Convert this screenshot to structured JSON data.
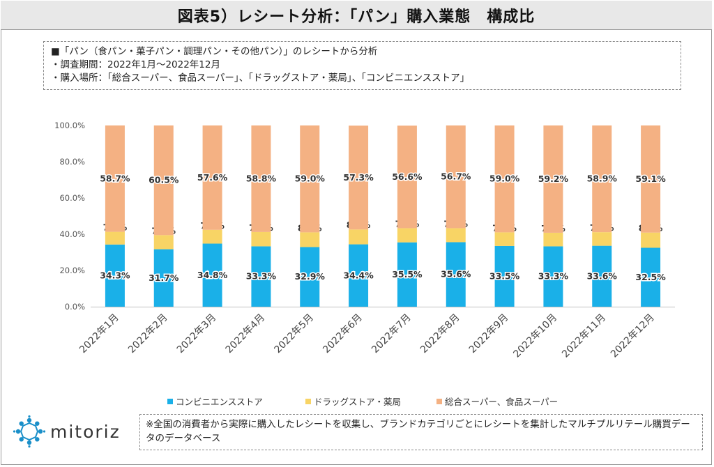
{
  "header": {
    "title": "図表5）レシート分析：「パン」購入業態　構成比"
  },
  "notes": {
    "line1": "■「パン（食パン・菓子パン・調理パン・その他パン）」のレシートから分析",
    "line2": "・調査期間：2022年1月～2022年12月",
    "line3": "・購入場所：「総合スーパー、食品スーパー」、「ドラッグストア・薬局」、「コンビニエンスストア」"
  },
  "footer": {
    "logo_text": "mitoriz",
    "footnote": "※全国の消費者から実際に購入したレシートを収集し、ブランドカテゴリごとにレシートを集計したマルチプルリテール購買データのデータベース"
  },
  "chart_data": {
    "type": "bar",
    "stacked": true,
    "categories": [
      "2022年1月",
      "2022年2月",
      "2022年3月",
      "2022年4月",
      "2022年5月",
      "2022年6月",
      "2022年7月",
      "2022年8月",
      "2022年9月",
      "2022年10月",
      "2022年11月",
      "2022年12月"
    ],
    "series": [
      {
        "name": "コンビニエンスストア",
        "color": "#1ab0e8",
        "values": [
          34.3,
          31.7,
          34.8,
          33.3,
          32.9,
          34.4,
          35.5,
          35.6,
          33.5,
          33.3,
          33.6,
          32.5
        ]
      },
      {
        "name": "ドラッグストア・薬局",
        "color": "#f8d465",
        "values": [
          7.0,
          7.8,
          7.6,
          7.9,
          8.1,
          8.2,
          7.8,
          7.7,
          7.5,
          7.5,
          7.5,
          8.4
        ]
      },
      {
        "name": "総合スーパー、食品スーパー",
        "color": "#f4b183",
        "values": [
          58.7,
          60.5,
          57.6,
          58.8,
          59.0,
          57.3,
          56.6,
          56.7,
          59.0,
          59.2,
          58.9,
          59.1
        ]
      }
    ],
    "yticks": [
      "0.0%",
      "20.0%",
      "40.0%",
      "60.0%",
      "80.0%",
      "100.0%"
    ],
    "ylim": [
      0,
      100
    ],
    "value_suffix": "%",
    "grid": false,
    "legend_position": "bottom"
  }
}
